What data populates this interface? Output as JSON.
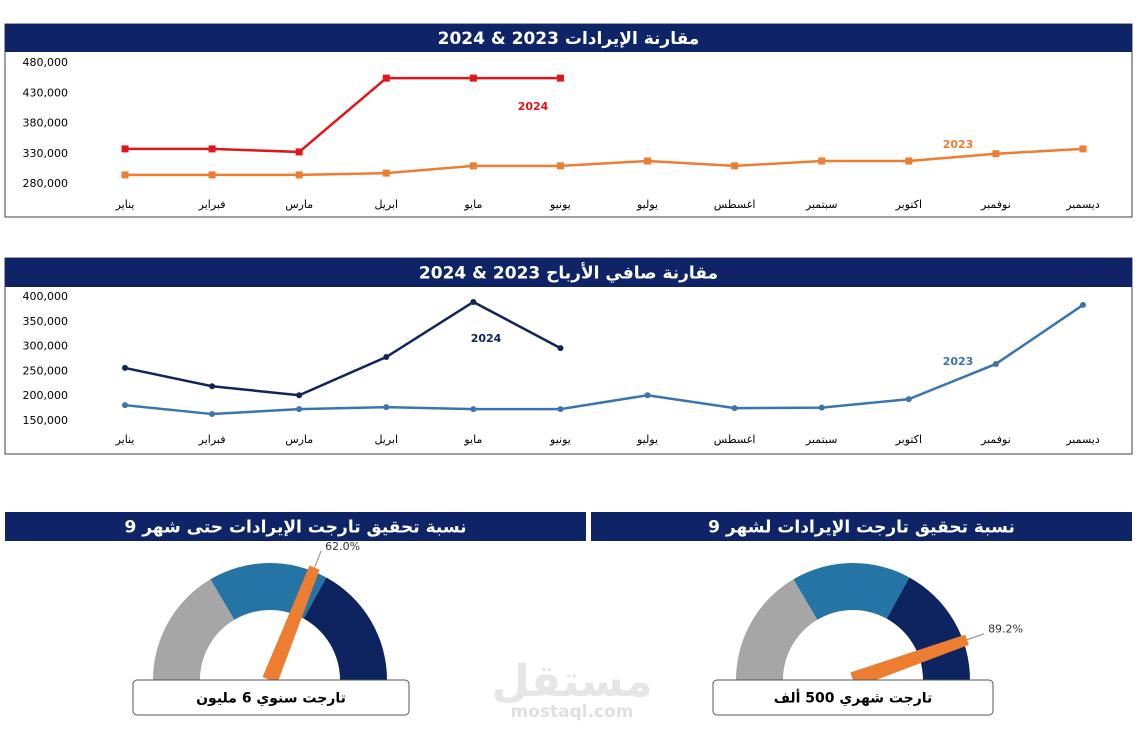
{
  "chart_data": [
    {
      "type": "line",
      "title": "مقارنة الإيرادات 2023 & 2024",
      "categories": [
        "يناير",
        "فبراير",
        "مارس",
        "ابريل",
        "مايو",
        "يونيو",
        "يوليو",
        "اغسطس",
        "سبتمبر",
        "اكتوبر",
        "نوفمبر",
        "ديسمبر"
      ],
      "series": [
        {
          "name": "2023",
          "color": "#ed7d31",
          "marker": "square",
          "values": [
            295000,
            295000,
            295000,
            298000,
            310000,
            310000,
            318000,
            310000,
            318000,
            318000,
            330000,
            338000
          ]
        },
        {
          "name": "2024",
          "color": "#e0161b",
          "marker": "square",
          "values": [
            338000,
            338000,
            333000,
            455000,
            455000,
            455000,
            null,
            null,
            null,
            null,
            null,
            null
          ]
        }
      ],
      "ylim": [
        280000,
        480000
      ],
      "yticks": [
        {
          "value": 280000,
          "label": "280,000"
        },
        {
          "value": 330000,
          "label": "330,000"
        },
        {
          "value": 380000,
          "label": "380,000"
        },
        {
          "value": 430000,
          "label": "430,000"
        },
        {
          "value": 480000,
          "label": "480,000"
        }
      ]
    },
    {
      "type": "line",
      "title": "مقارنة صافي الأرباح 2023 & 2024",
      "categories": [
        "يناير",
        "فبراير",
        "مارس",
        "ابريل",
        "مايو",
        "يونيو",
        "يوليو",
        "اغسطس",
        "سبتمبر",
        "اكتوبر",
        "نوفمبر",
        "ديسمبر"
      ],
      "series": [
        {
          "name": "2023",
          "color": "#3a75af",
          "marker": "circle",
          "values": [
            182000,
            164000,
            174000,
            178000,
            174000,
            174000,
            202000,
            176000,
            177000,
            194000,
            265000,
            384000
          ]
        },
        {
          "name": "2024",
          "color": "#14245a",
          "marker": "circle",
          "values": [
            257000,
            220000,
            202000,
            279000,
            390000,
            297000,
            null,
            null,
            null,
            null,
            null,
            null
          ]
        }
      ],
      "ylim": [
        150000,
        400000
      ],
      "yticks": [
        {
          "value": 150000,
          "label": "150,000"
        },
        {
          "value": 200000,
          "label": "200,000"
        },
        {
          "value": 250000,
          "label": "250,000"
        },
        {
          "value": 300000,
          "label": "300,000"
        },
        {
          "value": 350000,
          "label": "350,000"
        },
        {
          "value": 400000,
          "label": "400,000"
        }
      ]
    },
    {
      "type": "gauge",
      "title": "نسبة تحقيق تارجت الإيرادات حتى شهر 9",
      "value": 62.0,
      "value_label": "62.0%",
      "target_label": "تارجت سنوي 6 مليون",
      "ylim": [
        0,
        100
      ],
      "needle_color": "#ed7d31",
      "bands": [
        {
          "color": "#a6a6a6",
          "value": 33
        },
        {
          "color": "#2474a6",
          "value": 33
        },
        {
          "color": "#0e2461",
          "value": 34
        }
      ]
    },
    {
      "type": "gauge",
      "title": "نسبة تحقيق تارجت الإيرادات لشهر 9",
      "value": 89.2,
      "value_label": "89.2%",
      "target_label": "تارجت شهري 500 ألف",
      "ylim": [
        0,
        100
      ],
      "needle_color": "#ed7d31",
      "bands": [
        {
          "color": "#a6a6a6",
          "value": 33
        },
        {
          "color": "#2474a6",
          "value": 33
        },
        {
          "color": "#0e2461",
          "value": 34
        }
      ]
    }
  ],
  "watermark": {
    "logo": "مستقل",
    "site": "mostaql.com"
  }
}
